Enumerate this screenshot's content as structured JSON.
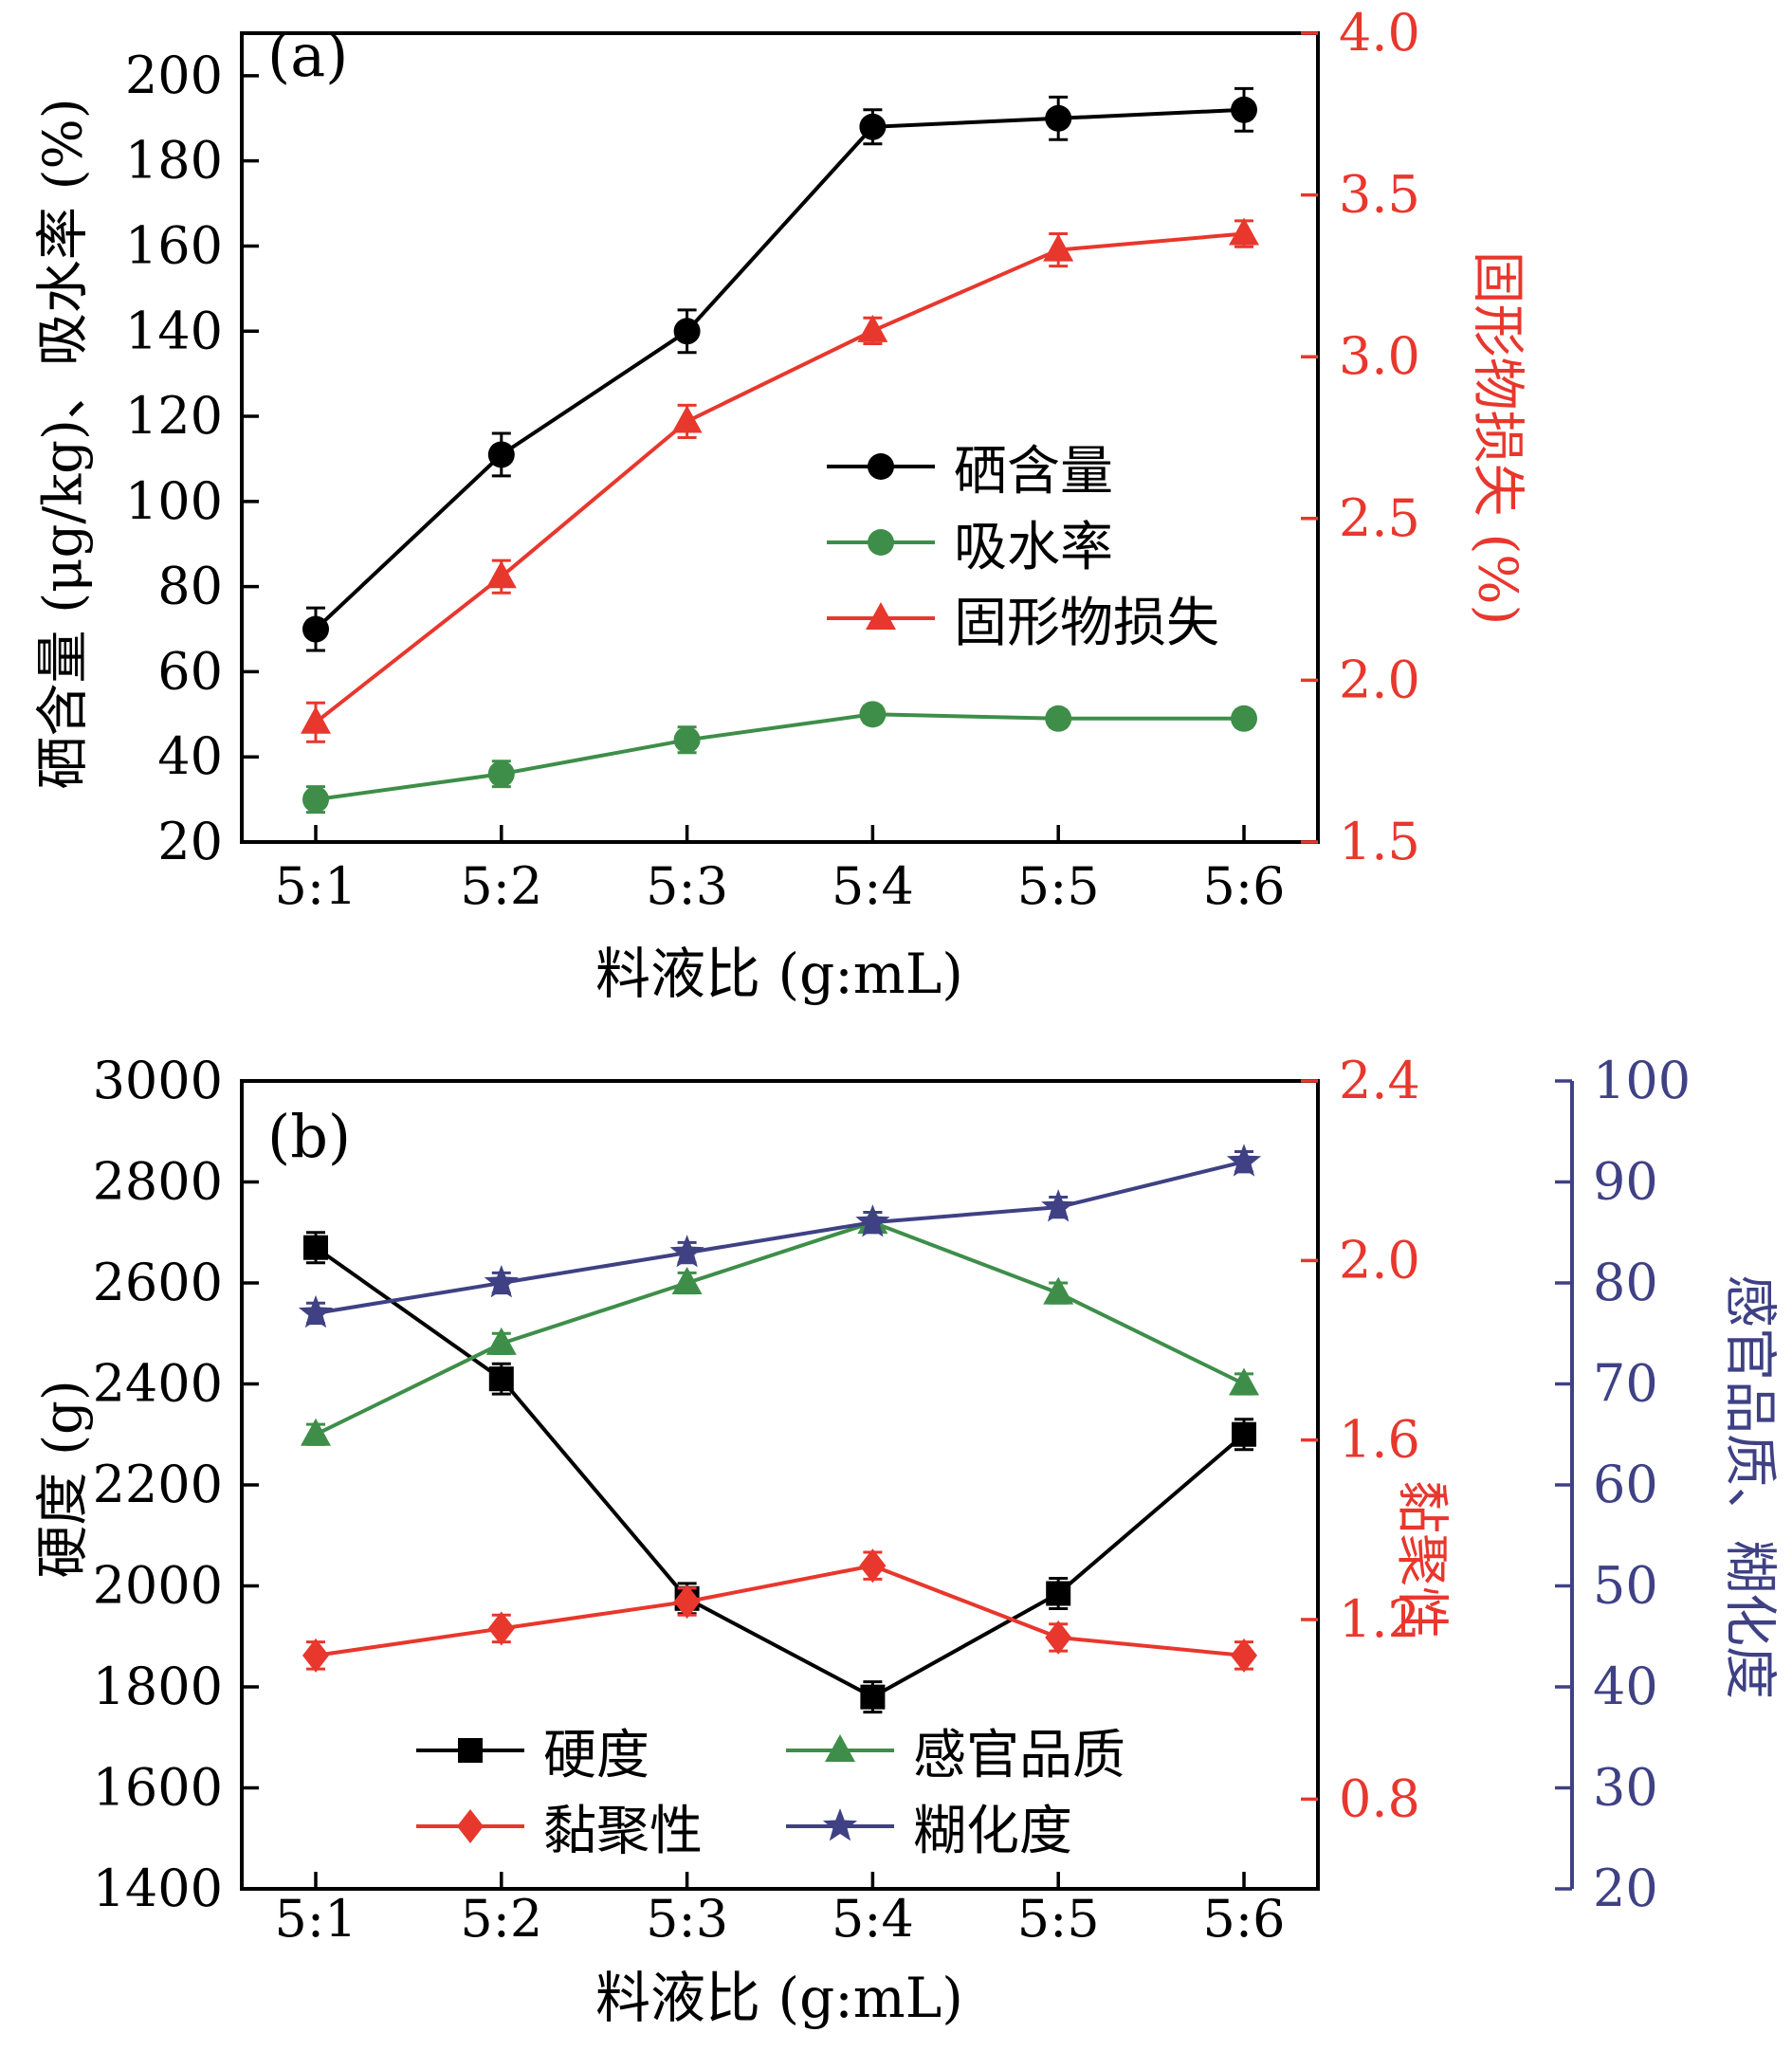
{
  "figure": {
    "background": "#ffffff",
    "frame_color": "#000000"
  },
  "chart_data": [
    {
      "type": "line",
      "panel_label": "(a)",
      "xlabel": "料液比 (g:mL)",
      "categories": [
        "5:1",
        "5:2",
        "5:3",
        "5:4",
        "5:5",
        "5:6"
      ],
      "grid": false,
      "axes": {
        "left": {
          "label": "硒含量 (μg/kg)、吸水率 (%)",
          "min": 20,
          "max": 210,
          "tick_step": 20,
          "tick_decimals": 0,
          "color": "#000000"
        },
        "right": {
          "label": "固形物损失 (%)",
          "min": 1.5,
          "max": 4.0,
          "tick_step": 0.5,
          "tick_decimals": 1,
          "color": "#e8372d"
        }
      },
      "series": [
        {
          "name": "硒含量",
          "axis": "left",
          "color": "#000000",
          "marker": "circle",
          "values": [
            70,
            111,
            140,
            188,
            190,
            192
          ],
          "errors": [
            5,
            5,
            5,
            4,
            5,
            5
          ]
        },
        {
          "name": "吸水率",
          "axis": "left",
          "color": "#3e8e49",
          "marker": "circle",
          "values": [
            30,
            36,
            44,
            50,
            49,
            49
          ],
          "errors": [
            3,
            3,
            3,
            2,
            2,
            2
          ]
        },
        {
          "name": "固形物损失",
          "axis": "right",
          "color": "#e8372d",
          "marker": "triangle",
          "values": [
            1.87,
            2.32,
            2.8,
            3.08,
            3.33,
            3.38
          ],
          "errors": [
            0.06,
            0.05,
            0.05,
            0.04,
            0.05,
            0.04
          ]
        }
      ],
      "legend": {
        "position": "middle-right-inside",
        "columns": 1,
        "items": [
          "硒含量",
          "吸水率",
          "固形物损失"
        ]
      }
    },
    {
      "type": "line",
      "panel_label": "(b)",
      "xlabel": "料液比 (g:mL)",
      "categories": [
        "5:1",
        "5:2",
        "5:3",
        "5:4",
        "5:5",
        "5:6"
      ],
      "grid": false,
      "axes": {
        "left": {
          "label": "硬度 (g)",
          "min": 1400,
          "max": 3000,
          "tick_step": 200,
          "tick_decimals": 0,
          "color": "#000000"
        },
        "right": {
          "label": "黏聚性",
          "min": 0.6,
          "max": 2.4,
          "tick_step": 0.4,
          "tick_decimals": 1,
          "color": "#e8372d"
        },
        "right2": {
          "label": "感官品质、糊化度",
          "min": 20,
          "max": 100,
          "tick_step": 10,
          "tick_decimals": 0,
          "color": "#3f4184"
        }
      },
      "series": [
        {
          "name": "硬度",
          "axis": "left",
          "color": "#000000",
          "marker": "square",
          "values": [
            2670,
            2410,
            1975,
            1780,
            1985,
            2300
          ],
          "errors": [
            30,
            30,
            30,
            30,
            30,
            30
          ]
        },
        {
          "name": "黏聚性",
          "axis": "right",
          "color": "#e8372d",
          "marker": "diamond",
          "values": [
            1.12,
            1.18,
            1.24,
            1.32,
            1.16,
            1.12
          ],
          "errors": [
            0.03,
            0.03,
            0.03,
            0.03,
            0.03,
            0.03
          ]
        },
        {
          "name": "感官品质",
          "axis": "right2",
          "color": "#3e8e49",
          "marker": "triangle",
          "values": [
            65,
            74,
            80,
            86,
            79,
            70
          ],
          "errors": [
            1,
            1,
            1,
            1,
            1,
            1
          ]
        },
        {
          "name": "糊化度",
          "axis": "right2",
          "color": "#3f4184",
          "marker": "star",
          "values": [
            77,
            80,
            83,
            86,
            87.5,
            92
          ],
          "errors": [
            1,
            1,
            1,
            1,
            1,
            1
          ]
        }
      ],
      "legend": {
        "position": "bottom-center-inside",
        "columns": 2,
        "items": [
          "硬度",
          "感官品质",
          "黏聚性",
          "糊化度"
        ]
      }
    }
  ]
}
